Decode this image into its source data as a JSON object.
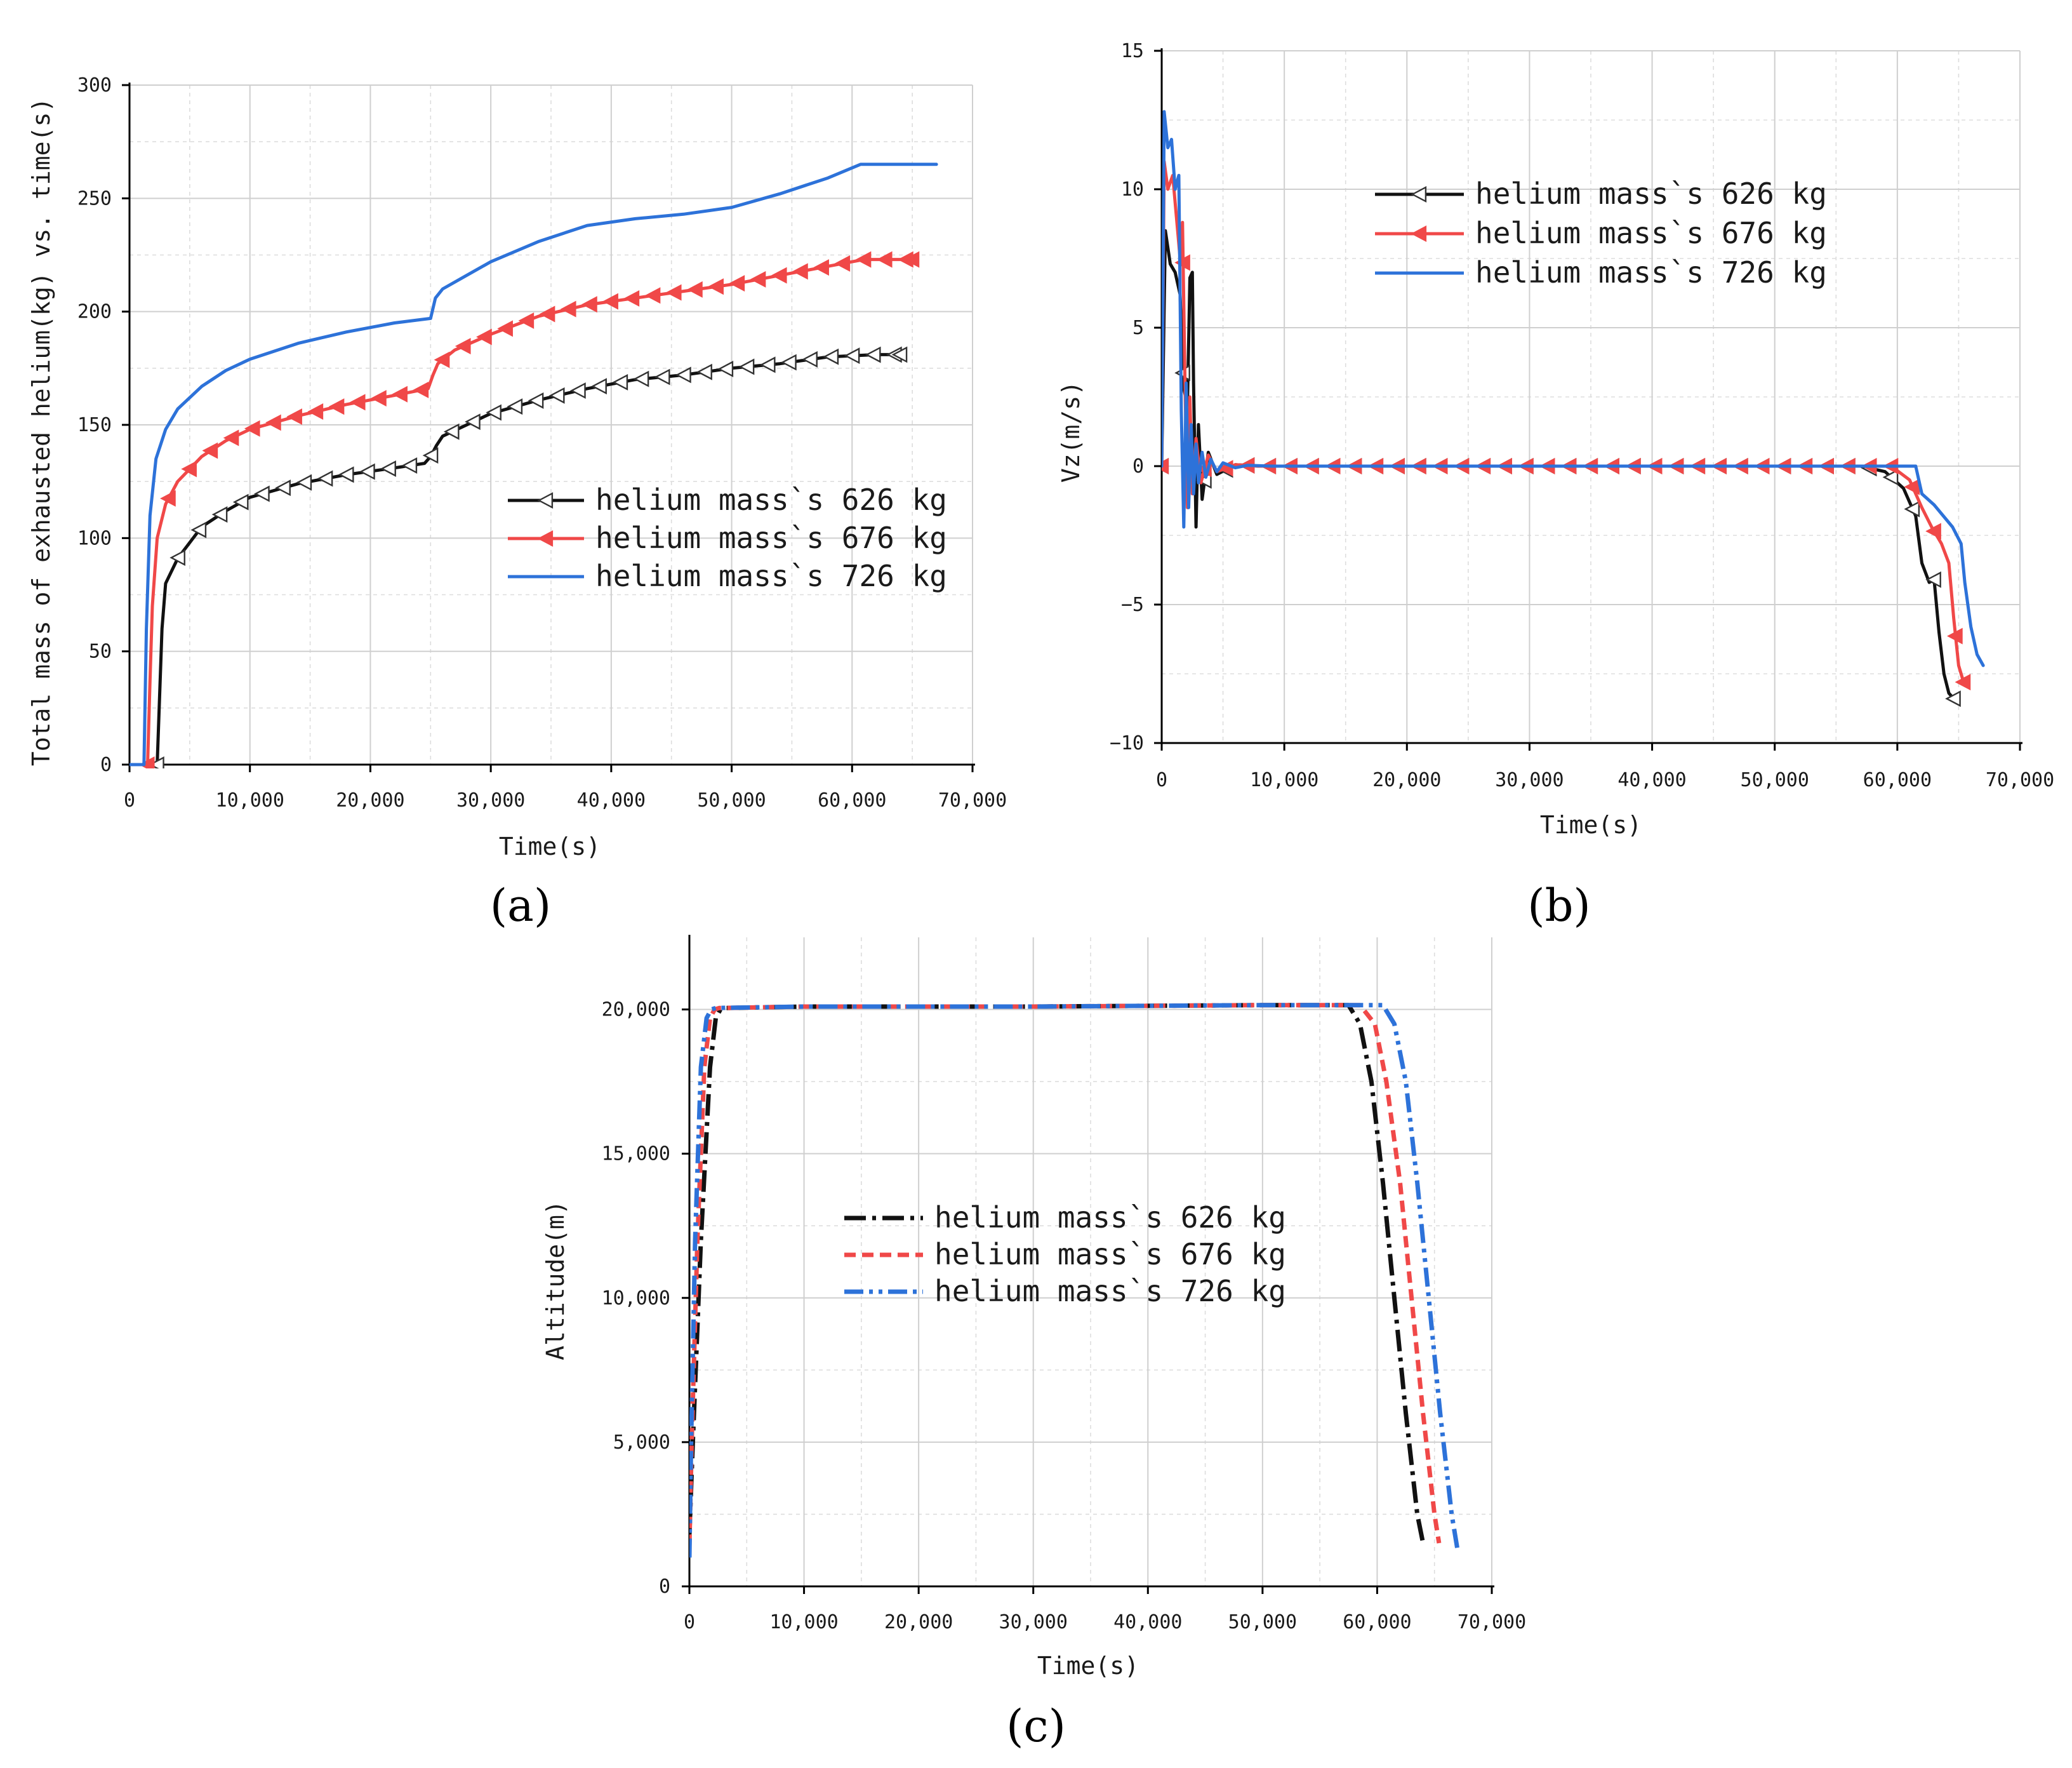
{
  "colors": {
    "s626": "#111111",
    "s676": "#f04848",
    "s726": "#2d72d9"
  },
  "chart_data": [
    {
      "id": "a",
      "type": "line",
      "panel_label": "(a)",
      "xlabel": "Time(s)",
      "ylabel": "Total mass of exhausted helium(kg) vs. time(s)",
      "xlim": [
        0,
        70000
      ],
      "ylim": [
        0,
        300
      ],
      "xticks": [
        0,
        10000,
        20000,
        30000,
        40000,
        50000,
        60000,
        70000
      ],
      "xtick_labels": [
        "0",
        "10,000",
        "20,000",
        "30,000",
        "40,000",
        "50,000",
        "60,000",
        "70,000"
      ],
      "yticks": [
        0,
        50,
        100,
        150,
        200,
        250,
        300
      ],
      "ytick_labels": [
        "0",
        "50",
        "100",
        "150",
        "200",
        "250",
        "300"
      ],
      "legend": "right",
      "series": [
        {
          "name": "helium mass`s 626 kg",
          "color_key": "s626",
          "marker": "open-left-triangle",
          "dash": "",
          "x": [
            0,
            2300,
            2500,
            2700,
            3000,
            4000,
            6000,
            8000,
            10000,
            14000,
            18000,
            22000,
            24500,
            25000,
            25500,
            26000,
            28000,
            30000,
            34000,
            38000,
            42000,
            46000,
            50000,
            54000,
            58000,
            62000,
            64000
          ],
          "y": [
            0,
            0,
            30,
            60,
            80,
            91,
            105,
            112,
            118,
            124,
            128,
            131,
            133,
            136,
            141,
            145,
            150,
            155,
            161,
            166,
            170,
            172,
            175,
            177,
            180,
            181,
            181
          ]
        },
        {
          "name": "helium mass`s 676 kg",
          "color_key": "s676",
          "marker": "filled-left-triangle",
          "dash": "",
          "x": [
            0,
            1500,
            1700,
            1900,
            2300,
            3000,
            4000,
            6000,
            8000,
            10000,
            14000,
            18000,
            22000,
            24800,
            25200,
            25600,
            27000,
            30000,
            34000,
            38000,
            42000,
            46000,
            50000,
            54000,
            58000,
            61000,
            65000
          ],
          "y": [
            0,
            0,
            37,
            70,
            100,
            115,
            125,
            136,
            143,
            148,
            154,
            159,
            163,
            166,
            172,
            177,
            183,
            190,
            198,
            203,
            206,
            209,
            212,
            216,
            220,
            223,
            223
          ]
        },
        {
          "name": "helium mass`s 726 kg",
          "color_key": "s726",
          "marker": "",
          "dash": "",
          "x": [
            0,
            1200,
            1400,
            1700,
            2200,
            3000,
            4000,
            6000,
            8000,
            10000,
            14000,
            18000,
            22000,
            25000,
            25400,
            26000,
            28000,
            30000,
            34000,
            38000,
            42000,
            46000,
            50000,
            54000,
            58000,
            60700,
            67000
          ],
          "y": [
            0,
            0,
            60,
            110,
            135,
            148,
            157,
            167,
            174,
            179,
            186,
            191,
            195,
            197,
            206,
            210,
            216,
            222,
            231,
            238,
            241,
            243,
            246,
            252,
            259,
            265,
            265
          ]
        }
      ]
    },
    {
      "id": "b",
      "type": "line",
      "panel_label": "(b)",
      "xlabel": "Time(s)",
      "ylabel": "Vz(m/s)",
      "xlim": [
        0,
        70000
      ],
      "ylim": [
        -10,
        15
      ],
      "xticks": [
        0,
        10000,
        20000,
        30000,
        40000,
        50000,
        60000,
        70000
      ],
      "xtick_labels": [
        "0",
        "10,000",
        "20,000",
        "30,000",
        "40,000",
        "50,000",
        "60,000",
        "70,000"
      ],
      "yticks": [
        -10,
        -5,
        0,
        5,
        10,
        15
      ],
      "ytick_labels": [
        "−10",
        "−5",
        "0",
        "5",
        "10",
        "15"
      ],
      "legend": "top-center",
      "series": [
        {
          "name": "helium mass`s 626 kg",
          "color_key": "s626",
          "marker": "open-left-triangle",
          "dash": "",
          "x": [
            0,
            300,
            700,
            1100,
            1500,
            1800,
            2100,
            2300,
            2500,
            2600,
            2800,
            3000,
            3300,
            3800,
            4500,
            6000,
            8000,
            15000,
            30000,
            45000,
            57000,
            59000,
            60500,
            61500,
            62000,
            62600,
            63000,
            63400,
            63800,
            64200,
            64600
          ],
          "y": [
            0,
            8.5,
            7.3,
            7,
            6.2,
            2.8,
            2.2,
            6.8,
            7,
            3,
            -2.2,
            1.5,
            -1.2,
            0.5,
            -0.3,
            0.05,
            0,
            0,
            0,
            0,
            0,
            -0.2,
            -0.8,
            -1.8,
            -3.5,
            -4.2,
            -4.1,
            -6,
            -7.5,
            -8.2,
            -8.4
          ]
        },
        {
          "name": "helium mass`s 676 kg",
          "color_key": "s676",
          "marker": "filled-left-triangle",
          "dash": "",
          "x": [
            0,
            200,
            500,
            900,
            1200,
            1500,
            1700,
            1900,
            2100,
            2300,
            2500,
            2800,
            3200,
            3800,
            4500,
            6000,
            8000,
            15000,
            30000,
            45000,
            57000,
            59500,
            61000,
            62000,
            62800,
            63600,
            64200,
            64600,
            65000,
            65400
          ],
          "y": [
            0,
            11,
            10,
            10.5,
            9,
            7.5,
            8.8,
            3,
            -1.5,
            2.5,
            -1,
            1,
            -0.6,
            0.4,
            -0.2,
            0.05,
            0,
            0,
            0,
            0,
            0,
            0,
            -0.5,
            -1.5,
            -2.2,
            -2.8,
            -3.5,
            -5.5,
            -7.2,
            -7.8
          ]
        },
        {
          "name": "helium mass`s 726 kg",
          "color_key": "s726",
          "marker": "",
          "dash": "",
          "x": [
            0,
            200,
            500,
            800,
            1100,
            1400,
            1600,
            1800,
            2000,
            2200,
            2400,
            2600,
            2800,
            3000,
            3300,
            3600,
            4000,
            4500,
            5000,
            6000,
            7000,
            9000,
            15000,
            30000,
            45000,
            58000,
            61500,
            62000,
            63000,
            64500,
            65200,
            65500,
            66000,
            66500,
            67000
          ],
          "y": [
            0,
            12.8,
            11.5,
            11.8,
            10,
            10.5,
            2,
            -2.2,
            3,
            -1.5,
            1.5,
            -1,
            0.8,
            -0.6,
            0.5,
            -0.4,
            0.25,
            -0.2,
            0.12,
            -0.06,
            0.03,
            0,
            0,
            0,
            0,
            0,
            0,
            -1,
            -1.4,
            -2.2,
            -2.8,
            -4.2,
            -5.8,
            -6.8,
            -7.2
          ]
        }
      ]
    },
    {
      "id": "c",
      "type": "line",
      "panel_label": "(c)",
      "xlabel": "Time(s)",
      "ylabel": "Altitude(m)",
      "xlim": [
        0,
        70000
      ],
      "ylim": [
        0,
        22500
      ],
      "xticks": [
        0,
        10000,
        20000,
        30000,
        40000,
        50000,
        60000,
        70000
      ],
      "xtick_labels": [
        "0",
        "10,000",
        "20,000",
        "30,000",
        "40,000",
        "50,000",
        "60,000",
        "70,000"
      ],
      "yticks": [
        0,
        5000,
        10000,
        15000,
        20000
      ],
      "ytick_labels": [
        "0",
        "5,000",
        "10,000",
        "15,000",
        "20,000"
      ],
      "legend": "center-left",
      "series": [
        {
          "name": "helium mass`s 626 kg",
          "color_key": "s626",
          "marker": "",
          "dash": "dashdot",
          "x": [
            0,
            300,
            1000,
            1800,
            2300,
            2700,
            3000,
            10000,
            30000,
            50000,
            57500,
            58500,
            59500,
            60500,
            61500,
            62500,
            63500,
            64000
          ],
          "y": [
            1800,
            5000,
            12000,
            18000,
            19700,
            20000,
            20050,
            20100,
            20100,
            20150,
            20150,
            19500,
            17500,
            14000,
            10000,
            6000,
            2500,
            1500
          ]
        },
        {
          "name": "helium mass`s 676 kg",
          "color_key": "s676",
          "marker": "",
          "dash": "dashed",
          "x": [
            0,
            200,
            700,
            1300,
            1800,
            2200,
            2600,
            10000,
            30000,
            50000,
            58500,
            59800,
            60800,
            62000,
            63000,
            64000,
            65000,
            65400
          ],
          "y": [
            1400,
            5000,
            12000,
            18000,
            19700,
            20000,
            20050,
            20100,
            20100,
            20150,
            20150,
            19500,
            17500,
            14000,
            10000,
            6000,
            2500,
            1500
          ]
        },
        {
          "name": "helium mass`s 726 kg",
          "color_key": "s726",
          "marker": "",
          "dash": "dashdotdot",
          "x": [
            0,
            150,
            500,
            1000,
            1500,
            1900,
            2300,
            10000,
            30000,
            50000,
            60500,
            61500,
            62500,
            63500,
            64500,
            65500,
            66500,
            67000
          ],
          "y": [
            1000,
            5000,
            12000,
            18000,
            19700,
            20000,
            20050,
            20100,
            20100,
            20150,
            20150,
            19500,
            17500,
            14000,
            10000,
            6000,
            2500,
            1300
          ]
        }
      ]
    }
  ]
}
